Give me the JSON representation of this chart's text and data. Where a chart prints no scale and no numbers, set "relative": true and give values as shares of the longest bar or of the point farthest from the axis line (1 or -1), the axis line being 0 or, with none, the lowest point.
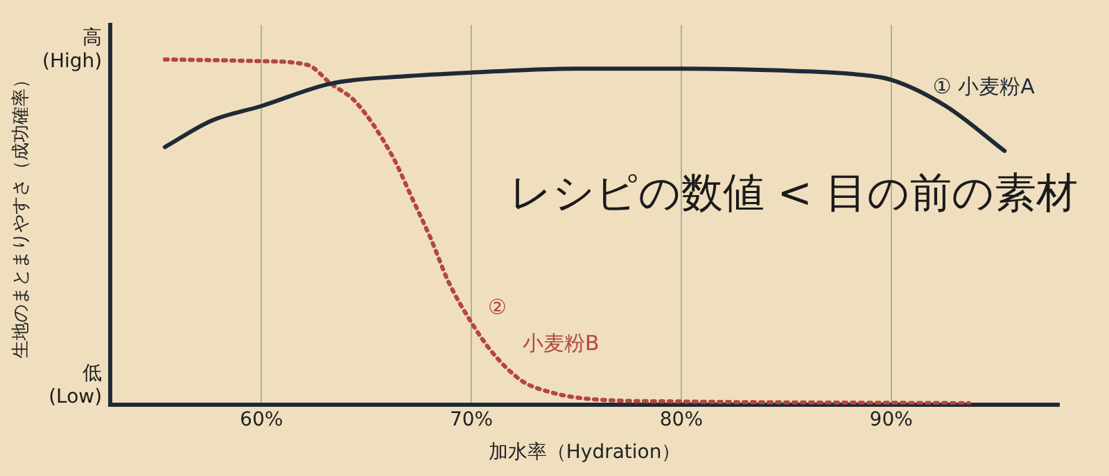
{
  "chart_data": {
    "type": "line",
    "relative": true,
    "xlabel": "加水率（Hydration）",
    "ylabel": "生地のまとまりやすさ（成功確率）",
    "xlim": [
      52.8,
      98
    ],
    "xticks": [
      {
        "value": 60,
        "label": "60%"
      },
      {
        "value": 70,
        "label": "70%"
      },
      {
        "value": 80,
        "label": "80%"
      },
      {
        "value": 90,
        "label": "90%"
      }
    ],
    "grid": "x",
    "legend": false,
    "marker": "none",
    "series": [
      {
        "name": "① 小麦粉A",
        "color": "#1f2a36",
        "line_style": "solid",
        "x": [
          55.4,
          57.6,
          60,
          63.3,
          66.8,
          70,
          75,
          80,
          84.7,
          87.9,
          90,
          92.6,
          95.4
        ],
        "values": [
          0.746,
          0.822,
          0.865,
          0.93,
          0.951,
          0.962,
          0.973,
          0.973,
          0.968,
          0.959,
          0.941,
          0.865,
          0.735
        ]
      },
      {
        "name": "② 小麦粉B",
        "color": "#b5463e",
        "line_style": "dotted",
        "x": [
          55.4,
          60,
          62.2,
          63.3,
          64.5,
          66.2,
          67.2,
          68.1,
          68.9,
          70,
          71,
          72.4,
          73.7,
          75.7,
          80,
          93.7
        ],
        "values": [
          1,
          0.995,
          0.984,
          0.93,
          0.876,
          0.724,
          0.595,
          0.476,
          0.357,
          0.238,
          0.151,
          0.069,
          0.037,
          0.016,
          0.009,
          0.004
        ]
      }
    ],
    "annotations": [
      "レシピの数値 < 目の前の素材",
      "高\n(High)",
      "低\n(Low)"
    ]
  }
}
